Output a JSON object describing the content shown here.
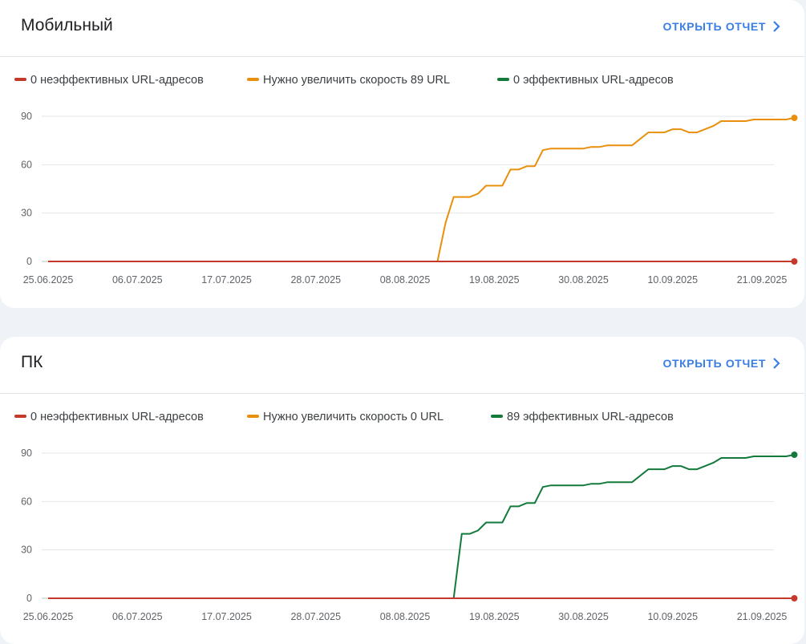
{
  "colors": {
    "poor": "#c5392b",
    "needs_improvement": "#e8900c",
    "good": "#137a3c",
    "accent": "#3a7ee6"
  },
  "cards": [
    {
      "title": "Мобильный",
      "open_report_label": "ОТКРЫТЬ ОТЧЕТ",
      "chevron_icon": "chevron-right-icon"
    },
    {
      "title": "ПК",
      "open_report_label": "ОТКРЫТЬ ОТЧЕТ",
      "chevron_icon": "chevron-right-icon"
    }
  ],
  "chart_data": [
    {
      "type": "line",
      "legend_position": "top-left",
      "grid": true,
      "ylim": [
        0,
        90
      ],
      "yticks": [
        0,
        30,
        60,
        90
      ],
      "xticks": [
        "25.06.2025",
        "06.07.2025",
        "17.07.2025",
        "28.07.2025",
        "08.08.2025",
        "19.08.2025",
        "30.08.2025",
        "10.09.2025",
        "21.09.2025"
      ],
      "x_range": [
        "2025-06-25",
        "2025-09-21"
      ],
      "series": [
        {
          "key": "needs_improvement",
          "name": "Нужно увеличить скорость 89 URL",
          "color": "#e8900c",
          "points": [
            [
              "2025-06-25",
              0
            ],
            [
              "2025-08-12",
              0
            ],
            [
              "2025-08-13",
              24
            ],
            [
              "2025-08-14",
              40
            ],
            [
              "2025-08-16",
              40
            ],
            [
              "2025-08-17",
              42
            ],
            [
              "2025-08-18",
              47
            ],
            [
              "2025-08-20",
              47
            ],
            [
              "2025-08-21",
              57
            ],
            [
              "2025-08-22",
              57
            ],
            [
              "2025-08-23",
              59
            ],
            [
              "2025-08-24",
              59
            ],
            [
              "2025-08-25",
              69
            ],
            [
              "2025-08-26",
              70
            ],
            [
              "2025-08-30",
              70
            ],
            [
              "2025-08-31",
              71
            ],
            [
              "2025-09-01",
              71
            ],
            [
              "2025-09-02",
              72
            ],
            [
              "2025-09-05",
              72
            ],
            [
              "2025-09-07",
              80
            ],
            [
              "2025-09-09",
              80
            ],
            [
              "2025-09-10",
              82
            ],
            [
              "2025-09-11",
              82
            ],
            [
              "2025-09-12",
              80
            ],
            [
              "2025-09-13",
              80
            ],
            [
              "2025-09-15",
              84
            ],
            [
              "2025-09-16",
              87
            ],
            [
              "2025-09-19",
              87
            ],
            [
              "2025-09-20",
              88
            ],
            [
              "2025-09-24",
              88
            ],
            [
              "2025-09-25",
              89
            ]
          ]
        },
        {
          "key": "poor",
          "name": "0 неэффективных URL-адресов",
          "color": "#c5392b",
          "points": [
            [
              "2025-06-25",
              0
            ],
            [
              "2025-09-25",
              0
            ]
          ]
        },
        {
          "key": "good",
          "name": "0 эффективных URL-адресов",
          "color": "#137a3c",
          "points": []
        }
      ]
    },
    {
      "type": "line",
      "legend_position": "top-left",
      "grid": true,
      "ylim": [
        0,
        90
      ],
      "yticks": [
        0,
        30,
        60,
        90
      ],
      "xticks": [
        "25.06.2025",
        "06.07.2025",
        "17.07.2025",
        "28.07.2025",
        "08.08.2025",
        "19.08.2025",
        "30.08.2025",
        "10.09.2025",
        "21.09.2025"
      ],
      "x_range": [
        "2025-06-25",
        "2025-09-21"
      ],
      "series": [
        {
          "key": "good",
          "name": "89 эффективных URL-адресов",
          "color": "#137a3c",
          "points": [
            [
              "2025-06-25",
              0
            ],
            [
              "2025-08-14",
              0
            ],
            [
              "2025-08-15",
              40
            ],
            [
              "2025-08-16",
              40
            ],
            [
              "2025-08-17",
              42
            ],
            [
              "2025-08-18",
              47
            ],
            [
              "2025-08-20",
              47
            ],
            [
              "2025-08-21",
              57
            ],
            [
              "2025-08-22",
              57
            ],
            [
              "2025-08-23",
              59
            ],
            [
              "2025-08-24",
              59
            ],
            [
              "2025-08-25",
              69
            ],
            [
              "2025-08-26",
              70
            ],
            [
              "2025-08-30",
              70
            ],
            [
              "2025-08-31",
              71
            ],
            [
              "2025-09-01",
              71
            ],
            [
              "2025-09-02",
              72
            ],
            [
              "2025-09-05",
              72
            ],
            [
              "2025-09-07",
              80
            ],
            [
              "2025-09-09",
              80
            ],
            [
              "2025-09-10",
              82
            ],
            [
              "2025-09-11",
              82
            ],
            [
              "2025-09-12",
              80
            ],
            [
              "2025-09-13",
              80
            ],
            [
              "2025-09-15",
              84
            ],
            [
              "2025-09-16",
              87
            ],
            [
              "2025-09-19",
              87
            ],
            [
              "2025-09-20",
              88
            ],
            [
              "2025-09-24",
              88
            ],
            [
              "2025-09-25",
              89
            ]
          ]
        },
        {
          "key": "poor",
          "name": "0 неэффективных URL-адресов",
          "color": "#c5392b",
          "points": [
            [
              "2025-06-25",
              0
            ],
            [
              "2025-09-25",
              0
            ]
          ]
        },
        {
          "key": "needs_improvement",
          "name": "Нужно увеличить скорость 0 URL",
          "color": "#e8900c",
          "points": []
        }
      ]
    }
  ]
}
